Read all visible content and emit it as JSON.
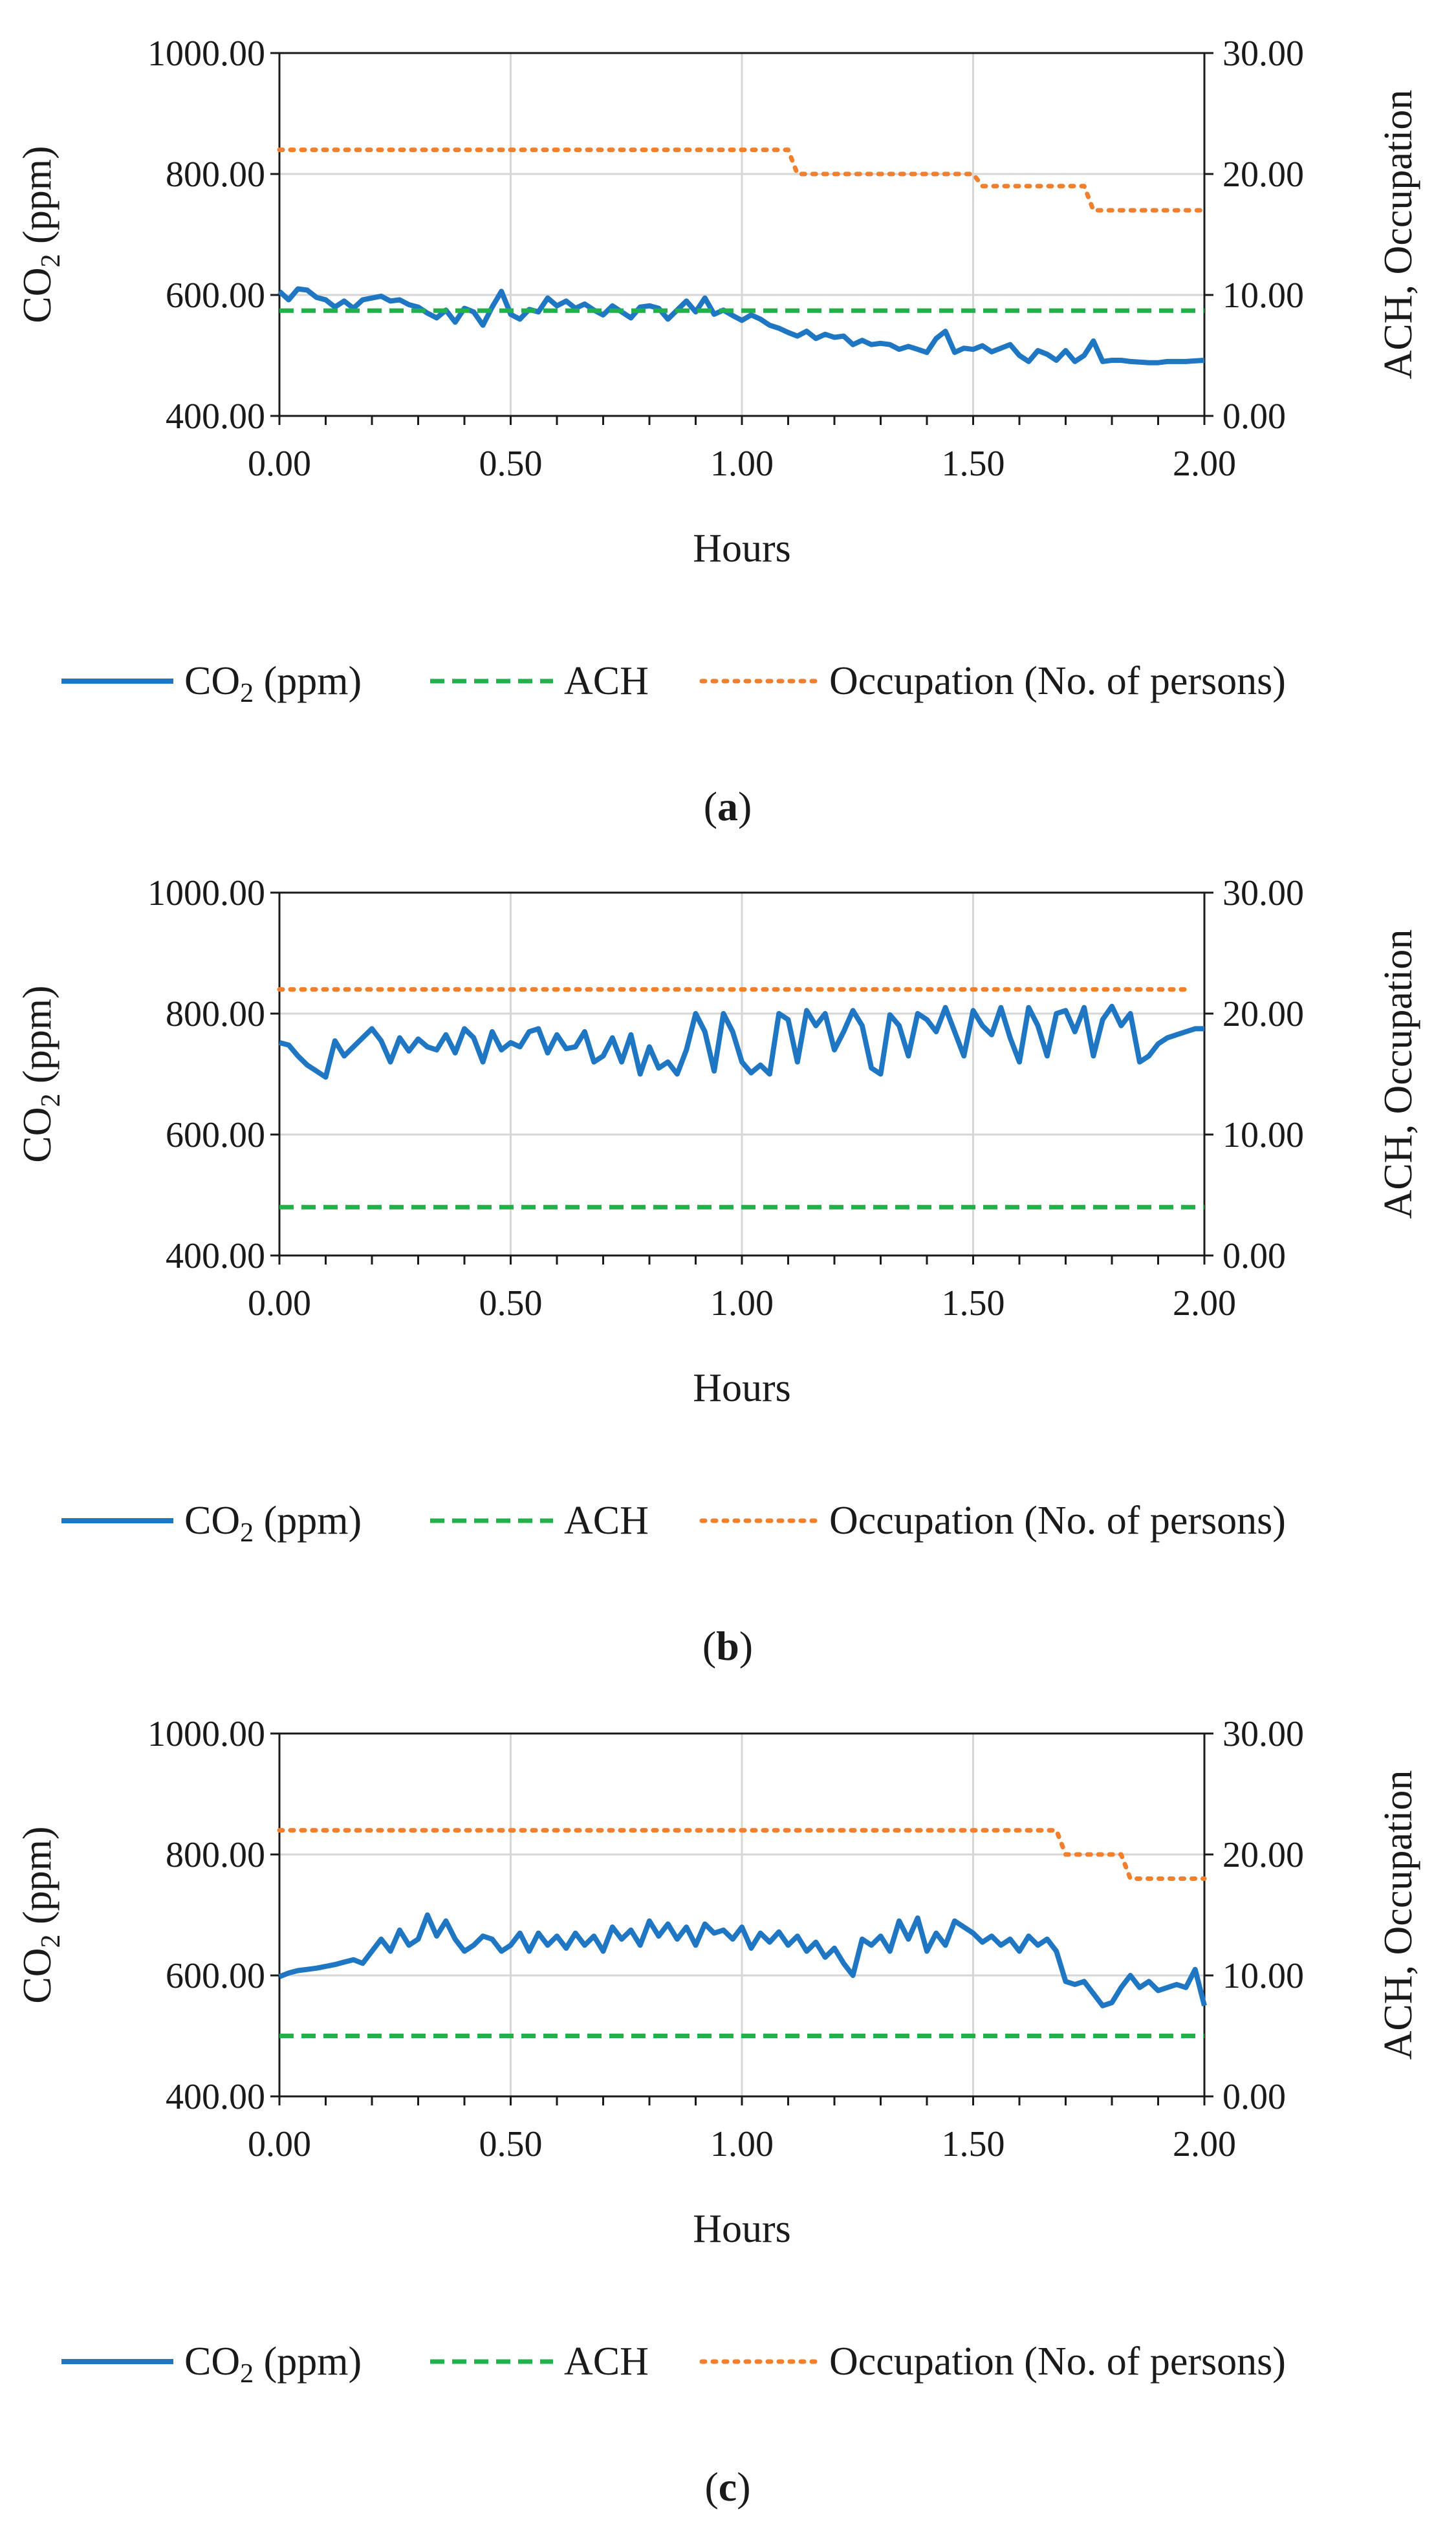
{
  "chart_data": [
    {
      "type": "line",
      "caption": "a",
      "x_label": "Hours",
      "y_label_left": "CO",
      "y_label_left_sub": "2",
      "y_label_left_tail": " (ppm)",
      "y_label_right": "ACH, Occupation",
      "x_ticks": [
        "0.00",
        "0.50",
        "1.00",
        "1.50",
        "2.00"
      ],
      "y_left_ticks": [
        "400.00",
        "600.00",
        "800.00",
        "1000.00"
      ],
      "y_right_ticks": [
        "0.00",
        "10.00",
        "20.00",
        "30.00"
      ],
      "x_range": [
        0,
        2
      ],
      "y_left_range": [
        400,
        1000
      ],
      "y_right_range": [
        0,
        30
      ],
      "series": [
        {
          "name": "CO2 (ppm)",
          "axis": "left",
          "style": "solid",
          "color": "#1f77c4",
          "x": [
            0.0,
            0.02,
            0.04,
            0.06,
            0.08,
            0.1,
            0.12,
            0.14,
            0.16,
            0.18,
            0.2,
            0.22,
            0.24,
            0.26,
            0.28,
            0.3,
            0.32,
            0.34,
            0.36,
            0.38,
            0.4,
            0.42,
            0.44,
            0.46,
            0.48,
            0.5,
            0.52,
            0.54,
            0.56,
            0.58,
            0.6,
            0.62,
            0.64,
            0.66,
            0.68,
            0.7,
            0.72,
            0.74,
            0.76,
            0.78,
            0.8,
            0.82,
            0.84,
            0.86,
            0.88,
            0.9,
            0.92,
            0.94,
            0.96,
            0.98,
            1.0,
            1.02,
            1.04,
            1.06,
            1.08,
            1.1,
            1.12,
            1.14,
            1.16,
            1.18,
            1.2,
            1.22,
            1.24,
            1.26,
            1.28,
            1.3,
            1.32,
            1.34,
            1.36,
            1.38,
            1.4,
            1.42,
            1.44,
            1.46,
            1.48,
            1.5,
            1.52,
            1.54,
            1.56,
            1.58,
            1.6,
            1.62,
            1.64,
            1.66,
            1.68,
            1.7,
            1.72,
            1.74,
            1.76,
            1.78,
            1.8,
            1.82,
            1.84,
            1.86,
            1.88,
            1.9,
            1.92,
            1.94,
            1.96,
            1.98,
            2.0
          ],
          "values": [
            606,
            592,
            610,
            608,
            596,
            592,
            580,
            590,
            578,
            592,
            595,
            598,
            590,
            592,
            584,
            580,
            570,
            562,
            575,
            555,
            578,
            572,
            550,
            580,
            606,
            568,
            560,
            576,
            572,
            595,
            582,
            590,
            578,
            585,
            575,
            567,
            582,
            572,
            562,
            580,
            582,
            578,
            560,
            575,
            590,
            572,
            595,
            568,
            575,
            566,
            558,
            567,
            560,
            550,
            545,
            538,
            532,
            540,
            528,
            535,
            530,
            532,
            518,
            525,
            518,
            520,
            518,
            510,
            515,
            510,
            505,
            528,
            540,
            505,
            512,
            510,
            516,
            506,
            512,
            518,
            500,
            490,
            508,
            502,
            492,
            508,
            490,
            500,
            524,
            490,
            492,
            492,
            490,
            489,
            488,
            488,
            490,
            490,
            490,
            491,
            492
          ]
        },
        {
          "name": "ACH",
          "axis": "right",
          "style": "dashed",
          "color": "#22b04b",
          "x": [
            0.0,
            2.0
          ],
          "values": [
            8.7,
            8.7
          ]
        },
        {
          "name": "Occupation (No. of persons)",
          "axis": "right",
          "style": "dotted",
          "color": "#f07f2e",
          "x": [
            0.0,
            1.1,
            1.12,
            1.5,
            1.52,
            1.74,
            1.76,
            2.0
          ],
          "values": [
            22,
            22,
            20,
            20,
            19,
            19,
            17,
            17
          ]
        }
      ]
    },
    {
      "type": "line",
      "caption": "b",
      "x_label": "Hours",
      "y_label_left": "CO",
      "y_label_left_sub": "2",
      "y_label_left_tail": " (ppm)",
      "y_label_right": "ACH, Occupation",
      "x_ticks": [
        "0.00",
        "0.50",
        "1.00",
        "1.50",
        "2.00"
      ],
      "y_left_ticks": [
        "400.00",
        "600.00",
        "800.00",
        "1000.00"
      ],
      "y_right_ticks": [
        "0.00",
        "10.00",
        "20.00",
        "30.00"
      ],
      "x_range": [
        0,
        2
      ],
      "y_left_range": [
        400,
        1000
      ],
      "y_right_range": [
        0,
        30
      ],
      "series": [
        {
          "name": "CO2 (ppm)",
          "axis": "left",
          "style": "solid",
          "color": "#1f77c4",
          "x": [
            0.0,
            0.02,
            0.04,
            0.06,
            0.08,
            0.1,
            0.12,
            0.14,
            0.16,
            0.18,
            0.2,
            0.22,
            0.24,
            0.26,
            0.28,
            0.3,
            0.32,
            0.34,
            0.36,
            0.38,
            0.4,
            0.42,
            0.44,
            0.46,
            0.48,
            0.5,
            0.52,
            0.54,
            0.56,
            0.58,
            0.6,
            0.62,
            0.64,
            0.66,
            0.68,
            0.7,
            0.72,
            0.74,
            0.76,
            0.78,
            0.8,
            0.82,
            0.84,
            0.86,
            0.88,
            0.9,
            0.92,
            0.94,
            0.96,
            0.98,
            1.0,
            1.02,
            1.04,
            1.06,
            1.08,
            1.1,
            1.12,
            1.14,
            1.16,
            1.18,
            1.2,
            1.22,
            1.24,
            1.26,
            1.28,
            1.3,
            1.32,
            1.34,
            1.36,
            1.38,
            1.4,
            1.42,
            1.44,
            1.46,
            1.48,
            1.5,
            1.52,
            1.54,
            1.56,
            1.58,
            1.6,
            1.62,
            1.64,
            1.66,
            1.68,
            1.7,
            1.72,
            1.74,
            1.76,
            1.78,
            1.8,
            1.82,
            1.84,
            1.86,
            1.88,
            1.9,
            1.92,
            1.94,
            1.96,
            1.98,
            2.0
          ],
          "values": [
            752,
            748,
            730,
            715,
            705,
            695,
            755,
            730,
            745,
            760,
            775,
            755,
            720,
            760,
            738,
            758,
            745,
            740,
            765,
            735,
            775,
            760,
            720,
            770,
            740,
            752,
            745,
            770,
            775,
            735,
            765,
            742,
            745,
            770,
            720,
            730,
            760,
            720,
            765,
            700,
            745,
            710,
            720,
            700,
            740,
            800,
            770,
            705,
            800,
            770,
            720,
            702,
            715,
            700,
            800,
            790,
            720,
            805,
            780,
            800,
            740,
            770,
            805,
            780,
            710,
            700,
            798,
            780,
            730,
            800,
            790,
            770,
            810,
            770,
            730,
            805,
            780,
            765,
            810,
            760,
            720,
            810,
            780,
            730,
            800,
            805,
            770,
            810,
            730,
            790,
            812,
            780,
            800,
            720,
            730,
            750,
            760,
            765,
            770,
            775,
            775
          ]
        },
        {
          "name": "ACH",
          "axis": "right",
          "style": "dashed",
          "color": "#22b04b",
          "x": [
            0.0,
            2.0
          ],
          "values": [
            4.0,
            4.0
          ]
        },
        {
          "name": "Occupation (No. of persons)",
          "axis": "right",
          "style": "dotted",
          "color": "#f07f2e",
          "x": [
            0.0,
            1.97
          ],
          "values": [
            22,
            22
          ]
        }
      ]
    },
    {
      "type": "line",
      "caption": "c",
      "x_label": "Hours",
      "y_label_left": "CO",
      "y_label_left_sub": "2",
      "y_label_left_tail": " (ppm)",
      "y_label_right": "ACH, Occupation",
      "x_ticks": [
        "0.00",
        "0.50",
        "1.00",
        "1.50",
        "2.00"
      ],
      "y_left_ticks": [
        "400.00",
        "600.00",
        "800.00",
        "1000.00"
      ],
      "y_right_ticks": [
        "0.00",
        "10.00",
        "20.00",
        "30.00"
      ],
      "x_range": [
        0,
        2
      ],
      "y_left_range": [
        400,
        1000
      ],
      "y_right_range": [
        0,
        30
      ],
      "series": [
        {
          "name": "CO2 (ppm)",
          "axis": "left",
          "style": "solid",
          "color": "#1f77c4",
          "x": [
            0.0,
            0.02,
            0.04,
            0.06,
            0.08,
            0.1,
            0.12,
            0.14,
            0.16,
            0.18,
            0.2,
            0.22,
            0.24,
            0.26,
            0.28,
            0.3,
            0.32,
            0.34,
            0.36,
            0.38,
            0.4,
            0.42,
            0.44,
            0.46,
            0.48,
            0.5,
            0.52,
            0.54,
            0.56,
            0.58,
            0.6,
            0.62,
            0.64,
            0.66,
            0.68,
            0.7,
            0.72,
            0.74,
            0.76,
            0.78,
            0.8,
            0.82,
            0.84,
            0.86,
            0.88,
            0.9,
            0.92,
            0.94,
            0.96,
            0.98,
            1.0,
            1.02,
            1.04,
            1.06,
            1.08,
            1.1,
            1.12,
            1.14,
            1.16,
            1.18,
            1.2,
            1.22,
            1.24,
            1.26,
            1.28,
            1.3,
            1.32,
            1.34,
            1.36,
            1.38,
            1.4,
            1.42,
            1.44,
            1.46,
            1.48,
            1.5,
            1.52,
            1.54,
            1.56,
            1.58,
            1.6,
            1.62,
            1.64,
            1.66,
            1.68,
            1.7,
            1.72,
            1.74,
            1.76,
            1.78,
            1.8,
            1.82,
            1.84,
            1.86,
            1.88,
            1.9,
            1.92,
            1.94,
            1.96,
            1.98,
            2.0
          ],
          "values": [
            598,
            604,
            608,
            610,
            612,
            615,
            618,
            622,
            626,
            620,
            640,
            660,
            640,
            675,
            650,
            660,
            700,
            665,
            690,
            660,
            640,
            650,
            665,
            660,
            640,
            650,
            670,
            640,
            670,
            650,
            665,
            645,
            670,
            650,
            665,
            640,
            680,
            660,
            675,
            650,
            690,
            665,
            685,
            660,
            680,
            650,
            685,
            670,
            675,
            660,
            680,
            645,
            670,
            655,
            672,
            650,
            665,
            640,
            655,
            630,
            645,
            620,
            600,
            660,
            650,
            665,
            640,
            690,
            660,
            695,
            640,
            670,
            650,
            690,
            680,
            670,
            655,
            665,
            650,
            660,
            640,
            665,
            650,
            660,
            640,
            590,
            585,
            590,
            570,
            550,
            555,
            580,
            600,
            580,
            590,
            575,
            580,
            585,
            580,
            610,
            550
          ]
        },
        {
          "name": "ACH",
          "axis": "right",
          "style": "dashed",
          "color": "#22b04b",
          "x": [
            0.0,
            2.0
          ],
          "values": [
            5.0,
            5.0
          ]
        },
        {
          "name": "Occupation (No. of persons)",
          "axis": "right",
          "style": "dotted",
          "color": "#f07f2e",
          "x": [
            0.0,
            1.68,
            1.7,
            1.82,
            1.84,
            2.0
          ],
          "values": [
            22,
            22,
            20,
            20,
            18,
            18
          ]
        }
      ]
    }
  ],
  "legend": {
    "co2_prefix": "CO",
    "co2_sub": "2",
    "co2_suffix": " (ppm)",
    "ach": "ACH",
    "occupation": "Occupation (No. of persons)"
  }
}
